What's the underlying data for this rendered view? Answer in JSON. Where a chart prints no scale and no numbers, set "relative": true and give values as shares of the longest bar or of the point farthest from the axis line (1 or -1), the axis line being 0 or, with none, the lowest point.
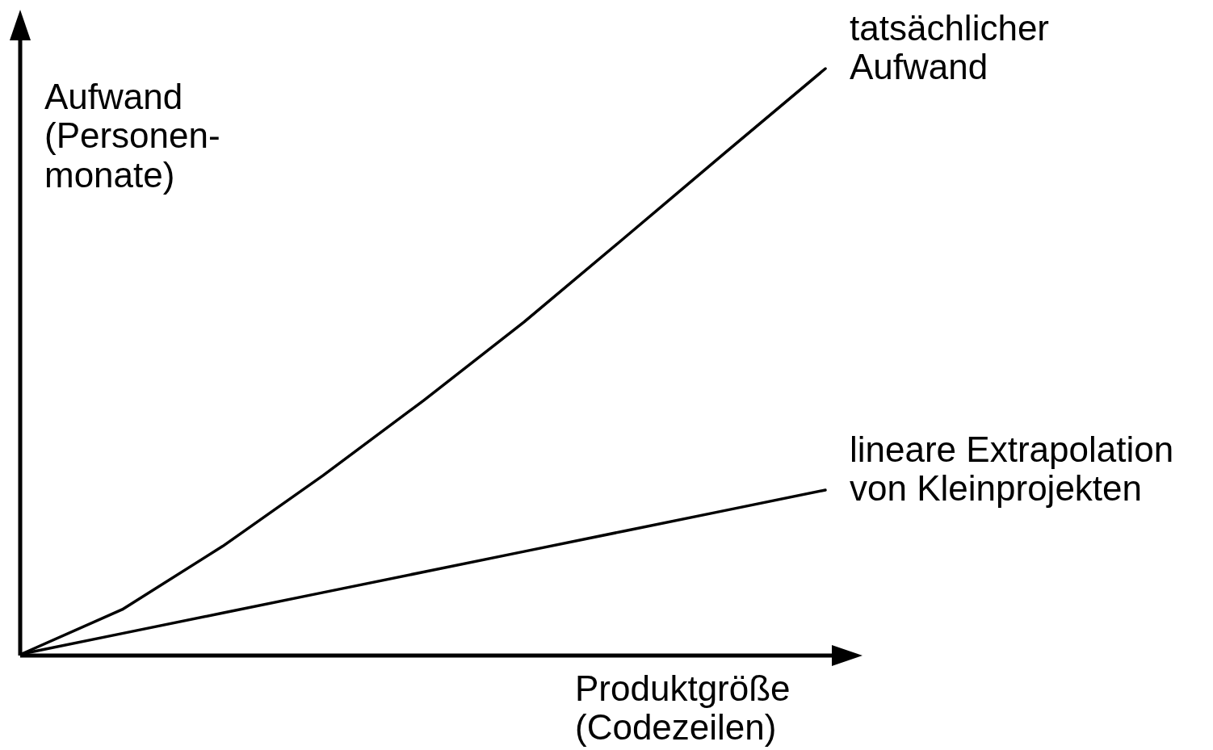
{
  "chart_data": {
    "type": "line",
    "relative": true,
    "xlabel": "Produktgröße\n(Codezeilen)",
    "ylabel": "Aufwand\n(Personen-\nmonate)",
    "categories": [
      null,
      null,
      null,
      null,
      null,
      null,
      null,
      null,
      null
    ],
    "series": [
      {
        "name": "tatsächlicher\nAufwand",
        "color": "#000000",
        "values": [
          0,
          0.076,
          0.184,
          0.305,
          0.433,
          0.567,
          0.711,
          0.856,
          1
        ]
      },
      {
        "name": "lineare Extrapolation\nvon Kleinprojekten",
        "color": "#000000",
        "values": [
          0,
          0.035,
          0.07,
          0.105,
          0.14,
          0.175,
          0.21,
          0.245,
          0.28
        ]
      }
    ],
    "marker": "none",
    "line_style": "solid"
  }
}
